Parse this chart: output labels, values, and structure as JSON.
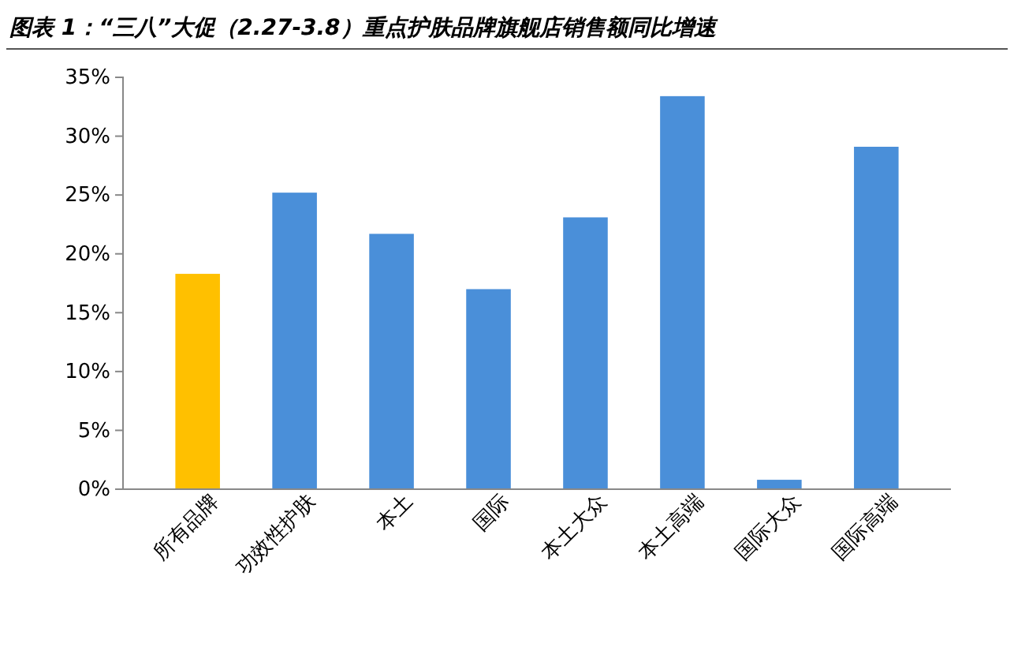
{
  "chart_data": {
    "type": "bar",
    "title": "图表 1：“三八”大促（2.27-3.8）重点护肤品牌旗舰店销售额同比增速",
    "categories": [
      "所有品牌",
      "功效性护肤",
      "本土",
      "国际",
      "本土大众",
      "本土高端",
      "国际大众",
      "国际高端"
    ],
    "values": [
      18.3,
      25.2,
      21.7,
      17.0,
      23.1,
      33.4,
      0.8,
      29.1
    ],
    "colors": [
      "#ffc000",
      "#4a8fd9",
      "#4a8fd9",
      "#4a8fd9",
      "#4a8fd9",
      "#4a8fd9",
      "#4a8fd9",
      "#4a8fd9"
    ],
    "ylim": [
      0,
      35
    ],
    "yticks": [
      {
        "value": 0,
        "label": "0%"
      },
      {
        "value": 5,
        "label": "5%"
      },
      {
        "value": 10,
        "label": "10%"
      },
      {
        "value": 15,
        "label": "15%"
      },
      {
        "value": 20,
        "label": "20%"
      },
      {
        "value": 25,
        "label": "25%"
      },
      {
        "value": 30,
        "label": "30%"
      },
      {
        "value": 35,
        "label": "35%"
      }
    ],
    "grid": false
  }
}
